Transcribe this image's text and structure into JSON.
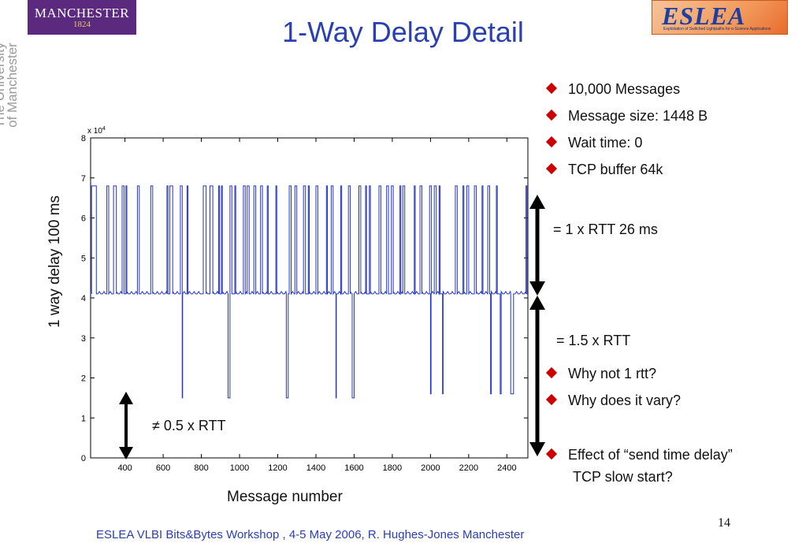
{
  "slide": {
    "title": "1-Way Delay Detail",
    "page_number": "14",
    "footer": "ESLEA VLBI Bits&Bytes Workshop , 4-5 May 2006,  R. Hughes-Jones  Manchester"
  },
  "logos": {
    "manchester_line1": "MANCHESTER",
    "manchester_line2": "1824",
    "side_text": "The University of Manchester",
    "eslea": "ESLEA",
    "eslea_tagline": "Exploitation of Switched Lightpaths for e-Science Applications"
  },
  "bullets_top": [
    "10,000 Messages",
    "Message size: 1448 B",
    "Wait time: 0",
    "TCP buffer 64k"
  ],
  "annotations": {
    "rtt_1": "= 1 x RTT 26 ms",
    "rtt_15": "= 1.5 x RTT",
    "rtt_05": "≠ 0.5 x RTT"
  },
  "bullets_mid": [
    "Why not 1 rtt?",
    "Why does it vary?"
  ],
  "bullets_bottom": [
    "Effect of “send time delay”",
    "TCP slow start?"
  ],
  "colors": {
    "title": "#2a3fb0",
    "bullet": "#cc0000",
    "trace": "#2233cc"
  },
  "chart_data": {
    "type": "line",
    "xlabel": "Message number",
    "ylabel": "1 way delay 100 ms",
    "y_multiplier_label": "x 10",
    "y_multiplier_exp": "4",
    "xlim": [
      220,
      2510
    ],
    "ylim": [
      0,
      8
    ],
    "x_ticks": [
      400,
      600,
      800,
      1000,
      1200,
      1400,
      1600,
      1800,
      2000,
      2200,
      2400
    ],
    "y_ticks": [
      0,
      1,
      2,
      3,
      4,
      5,
      6,
      7,
      8
    ],
    "baseline": 4.1,
    "high_level": 6.8,
    "low_level": 1.5,
    "high_spikes": [
      [
        225,
        250
      ],
      [
        305,
        315
      ],
      [
        340,
        355
      ],
      [
        385,
        395
      ],
      [
        405,
        410
      ],
      [
        465,
        475
      ],
      [
        535,
        545
      ],
      [
        620,
        625
      ],
      [
        635,
        650
      ],
      [
        690,
        700
      ],
      [
        725,
        730
      ],
      [
        810,
        825
      ],
      [
        845,
        860
      ],
      [
        890,
        895
      ],
      [
        905,
        910
      ],
      [
        950,
        960
      ],
      [
        975,
        980
      ],
      [
        1020,
        1030
      ],
      [
        1040,
        1050
      ],
      [
        1075,
        1085
      ],
      [
        1110,
        1120
      ],
      [
        1145,
        1150
      ],
      [
        1190,
        1195
      ],
      [
        1260,
        1270
      ],
      [
        1290,
        1300
      ],
      [
        1335,
        1345
      ],
      [
        1360,
        1365
      ],
      [
        1400,
        1410
      ],
      [
        1455,
        1460
      ],
      [
        1480,
        1490
      ],
      [
        1530,
        1535
      ],
      [
        1570,
        1580
      ],
      [
        1625,
        1635
      ],
      [
        1660,
        1665
      ],
      [
        1680,
        1685
      ],
      [
        1730,
        1740
      ],
      [
        1770,
        1780
      ],
      [
        1795,
        1805
      ],
      [
        1840,
        1845
      ],
      [
        1855,
        1865
      ],
      [
        1915,
        1920
      ],
      [
        1945,
        1955
      ],
      [
        1995,
        2005
      ],
      [
        2020,
        2030
      ],
      [
        2045,
        2050
      ],
      [
        2130,
        2140
      ],
      [
        2170,
        2175
      ],
      [
        2190,
        2200
      ],
      [
        2230,
        2240
      ],
      [
        2270,
        2275
      ],
      [
        2300,
        2310
      ],
      [
        2345,
        2350
      ],
      [
        2500,
        2505
      ]
    ],
    "low_drops": [
      [
        700,
        702,
        1.5
      ],
      [
        940,
        950,
        1.5
      ],
      [
        1245,
        1255,
        1.5
      ],
      [
        1505,
        1507,
        1.5
      ],
      [
        1590,
        1600,
        1.5
      ],
      [
        2000,
        2003,
        1.6
      ],
      [
        2063,
        2066,
        1.6
      ],
      [
        2315,
        2318,
        1.6
      ],
      [
        2365,
        2370,
        1.6
      ],
      [
        2420,
        2435,
        1.6
      ]
    ]
  }
}
